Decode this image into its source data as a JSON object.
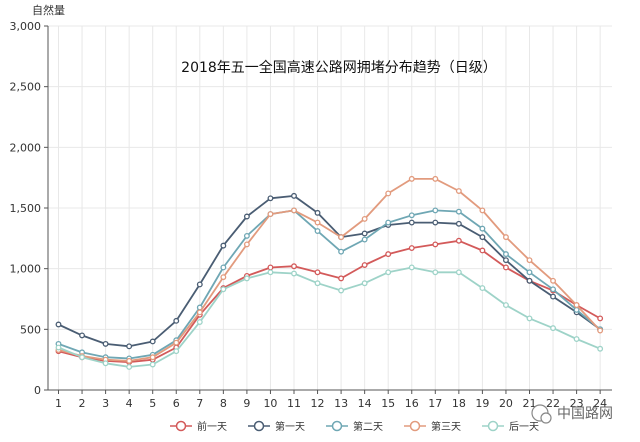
{
  "chart_data": {
    "type": "line",
    "title": "2018年五一全国高速公路网拥堵分布趋势（日级）",
    "ylabel": "自然量",
    "xlabel": "",
    "ylim": [
      0,
      3000
    ],
    "yticks": [
      0,
      500,
      1000,
      1500,
      2000,
      2500,
      3000
    ],
    "ytick_labels": [
      "0",
      "500",
      "1,000",
      "1,500",
      "2,000",
      "2,500",
      "3,000"
    ],
    "x": [
      1,
      2,
      3,
      4,
      5,
      6,
      7,
      8,
      9,
      10,
      11,
      12,
      13,
      14,
      15,
      16,
      17,
      18,
      19,
      20,
      21,
      22,
      23,
      24
    ],
    "x_labels": [
      "1",
      "2",
      "3",
      "4",
      "5",
      "6",
      "7",
      "8",
      "9",
      "10",
      "11",
      "12",
      "13",
      "14",
      "15",
      "16",
      "17",
      "18",
      "19",
      "20",
      "21",
      "22",
      "23",
      "24"
    ],
    "grid": true,
    "legend_position": "bottom",
    "series": [
      {
        "name": "前一天",
        "color": "#d35a5a",
        "values": [
          320,
          270,
          240,
          230,
          250,
          350,
          620,
          840,
          940,
          1010,
          1020,
          970,
          920,
          1030,
          1120,
          1170,
          1200,
          1230,
          1150,
          1010,
          900,
          820,
          700,
          590
        ]
      },
      {
        "name": "第一天",
        "color": "#4a5d73",
        "values": [
          540,
          450,
          380,
          360,
          400,
          570,
          870,
          1190,
          1430,
          1580,
          1600,
          1460,
          1260,
          1290,
          1360,
          1380,
          1380,
          1370,
          1260,
          1070,
          900,
          770,
          640,
          500
        ]
      },
      {
        "name": "第二天",
        "color": "#6fa7b4",
        "values": [
          380,
          310,
          270,
          260,
          290,
          410,
          680,
          1010,
          1270,
          1450,
          1480,
          1310,
          1140,
          1240,
          1380,
          1440,
          1480,
          1470,
          1330,
          1120,
          970,
          830,
          660,
          500
        ]
      },
      {
        "name": "第三天",
        "color": "#e29b7e",
        "values": [
          330,
          280,
          250,
          240,
          270,
          390,
          640,
          930,
          1200,
          1450,
          1480,
          1380,
          1260,
          1410,
          1620,
          1740,
          1740,
          1640,
          1480,
          1260,
          1070,
          900,
          700,
          490
        ]
      },
      {
        "name": "后一天",
        "color": "#9ed3c8",
        "values": [
          350,
          270,
          220,
          190,
          210,
          320,
          560,
          830,
          920,
          970,
          960,
          880,
          820,
          880,
          970,
          1010,
          970,
          970,
          840,
          700,
          590,
          510,
          420,
          340
        ]
      }
    ]
  },
  "watermark": {
    "text": "中国路网"
  }
}
